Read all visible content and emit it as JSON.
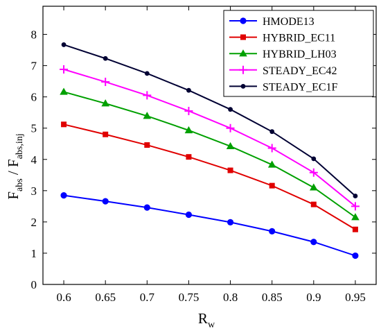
{
  "chart_data": {
    "type": "line",
    "x": [
      0.6,
      0.65,
      0.7,
      0.75,
      0.8,
      0.85,
      0.9,
      0.95
    ],
    "x_ticks": [
      "0.6",
      "0.65",
      "0.7",
      "0.75",
      "0.8",
      "0.85",
      "0.9",
      "0.95"
    ],
    "y_ticks": [
      "0",
      "1",
      "2",
      "3",
      "4",
      "5",
      "6",
      "7",
      "8"
    ],
    "xlim": [
      0.575,
      0.975
    ],
    "ylim": [
      0,
      8.9
    ],
    "xlabel": {
      "main": "R",
      "sub": "w"
    },
    "ylabel": {
      "a_main": "F",
      "a_sub": "abs",
      "sep": " / ",
      "b_main": "F",
      "b_sub": "abs,inj"
    },
    "grid": false,
    "legend_position": "top-right",
    "series": [
      {
        "name": "HMODE13",
        "color": "#0000ff",
        "marker": "circle",
        "values": [
          2.85,
          2.66,
          2.46,
          2.23,
          1.99,
          1.7,
          1.36,
          0.92
        ]
      },
      {
        "name": "HYBRID_EC11",
        "color": "#e00000",
        "marker": "square",
        "values": [
          5.12,
          4.8,
          4.46,
          4.08,
          3.65,
          3.16,
          2.56,
          1.76
        ]
      },
      {
        "name": "HYBRID_LH03",
        "color": "#00a000",
        "marker": "triangle",
        "values": [
          6.16,
          5.79,
          5.39,
          4.93,
          4.42,
          3.83,
          3.1,
          2.15
        ]
      },
      {
        "name": "STEADY_EC42",
        "color": "#ff00ff",
        "marker": "plus",
        "values": [
          6.88,
          6.48,
          6.05,
          5.55,
          5.0,
          4.36,
          3.58,
          2.5
        ]
      },
      {
        "name": "STEADY_EC1F",
        "color": "#000033",
        "marker": "dot",
        "values": [
          7.67,
          7.23,
          6.75,
          6.21,
          5.6,
          4.89,
          4.02,
          2.83
        ]
      }
    ]
  }
}
